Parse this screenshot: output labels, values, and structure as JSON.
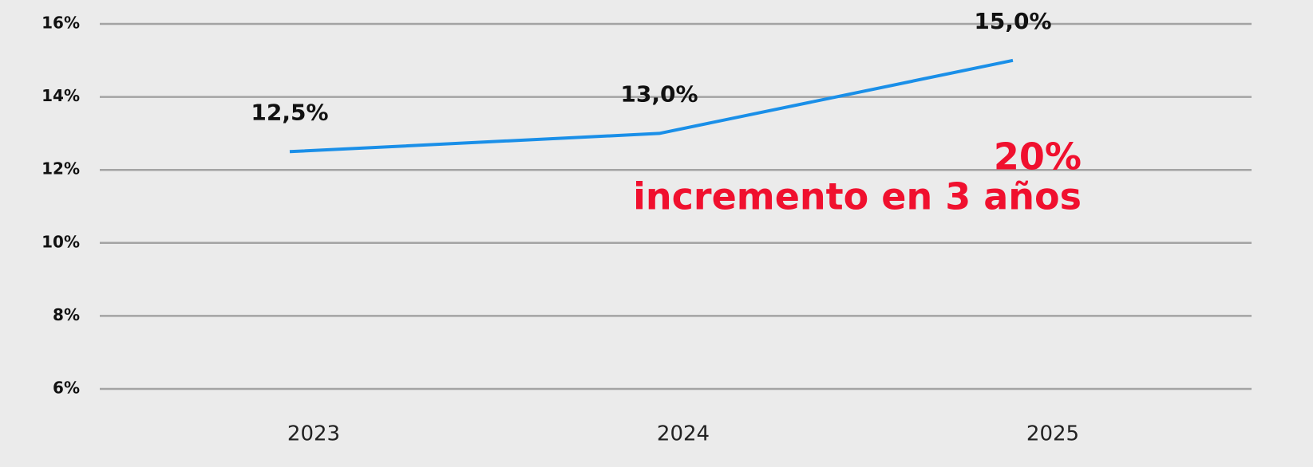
{
  "chart_data": {
    "type": "line",
    "categories": [
      "2023",
      "2024",
      "2025"
    ],
    "series": [
      {
        "name": "",
        "color": "#1a8fe8",
        "values": [
          12.5,
          13.0,
          15.0
        ],
        "value_labels": [
          "12,5%",
          "13,0%",
          "15,0%"
        ]
      }
    ],
    "ylim": [
      6,
      16
    ],
    "yticks": [
      {
        "value": 6,
        "label": "6%"
      },
      {
        "value": 8,
        "label": "8%"
      },
      {
        "value": 10,
        "label": "10%"
      },
      {
        "value": 12,
        "label": "12%"
      },
      {
        "value": 14,
        "label": "14%"
      },
      {
        "value": 16,
        "label": "16%"
      }
    ],
    "grid": true,
    "annotations": [
      "20%",
      "incremento en 3 años"
    ]
  }
}
